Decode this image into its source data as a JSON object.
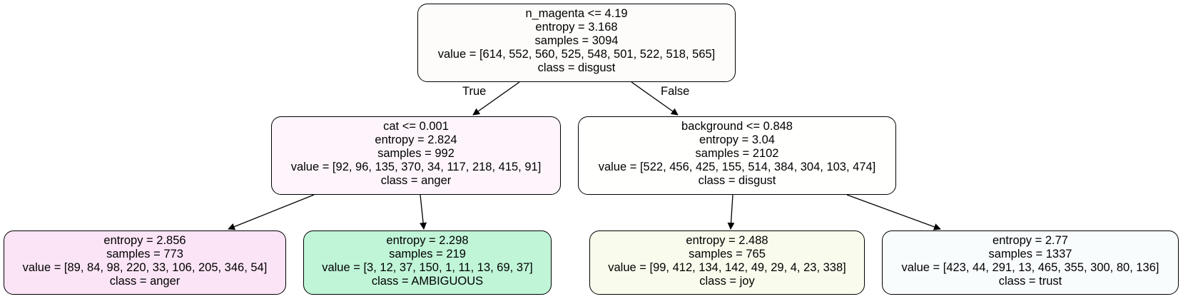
{
  "nodes": {
    "root": {
      "split": "n_magenta <= 4.19",
      "entropy": "entropy = 3.168",
      "samples": "samples = 3094",
      "value": "value = [614, 552, 560, 525, 548, 501, 522, 518, 565]",
      "class": "class = disgust",
      "fill": "#fdfcfa"
    },
    "left": {
      "split": "cat <= 0.001",
      "entropy": "entropy = 2.824",
      "samples": "samples = 992",
      "value": "value = [92, 96, 135, 370, 34, 117, 218, 415, 91]",
      "class": "class = anger",
      "fill": "#fdf5fb"
    },
    "right": {
      "split": "background <= 0.848",
      "entropy": "entropy = 3.04",
      "samples": "samples = 2102",
      "value": "value = [522, 456, 425, 155, 514, 384, 304, 103, 474]",
      "class": "class = disgust",
      "fill": "#fffffe"
    },
    "ll": {
      "entropy": "entropy = 2.856",
      "samples": "samples = 773",
      "value": "value = [89, 84, 98, 220, 33, 106, 205, 346, 54]",
      "class": "class = anger",
      "fill": "#fbe4f6"
    },
    "lr": {
      "entropy": "entropy = 2.298",
      "samples": "samples = 219",
      "value": "value = [3, 12, 37, 150, 1, 11, 13, 69, 37]",
      "class": "class = AMBIGUOUS",
      "fill": "#c0f5d8"
    },
    "rl": {
      "entropy": "entropy = 2.488",
      "samples": "samples = 765",
      "value": "value = [99, 412, 134, 142, 49, 29, 4, 23, 338]",
      "class": "class = joy",
      "fill": "#f9fbec"
    },
    "rr": {
      "entropy": "entropy = 2.77",
      "samples": "samples = 1337",
      "value": "value = [423, 44, 291, 13, 465, 355, 300, 80, 136]",
      "class": "class = trust",
      "fill": "#f8fcfd"
    }
  },
  "edge_labels": {
    "true_label": "True",
    "false_label": "False"
  }
}
